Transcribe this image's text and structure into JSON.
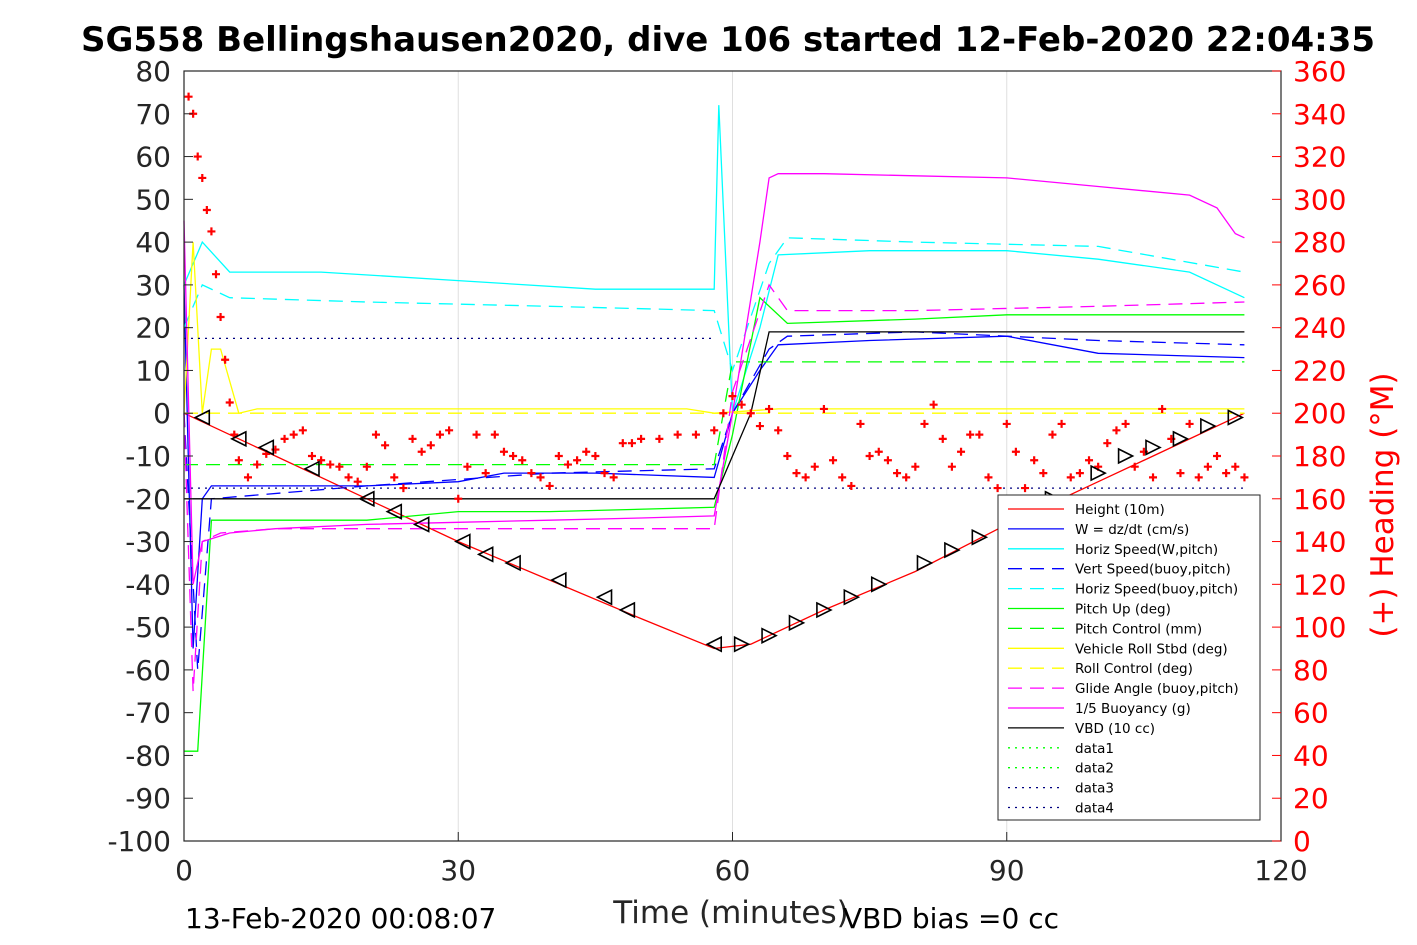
{
  "chart_data": {
    "type": "line",
    "title": "SG558 Bellingshausen2020, dive 106 started 12-Feb-2020 22:04:35",
    "xlabel": "Time (minutes)",
    "ylabel": "",
    "y2label": "(+) Heading (°M)",
    "xlim": [
      0,
      120
    ],
    "ylim": [
      -100,
      80
    ],
    "y2lim": [
      0,
      360
    ],
    "xticks": [
      0,
      30,
      60,
      90,
      120
    ],
    "yticks": [
      -100,
      -90,
      -80,
      -70,
      -60,
      -50,
      -40,
      -30,
      -20,
      -10,
      0,
      10,
      20,
      30,
      40,
      50,
      60,
      70,
      80
    ],
    "y2ticks": [
      0,
      20,
      40,
      60,
      80,
      100,
      120,
      140,
      160,
      180,
      200,
      220,
      240,
      260,
      280,
      300,
      320,
      340,
      360
    ],
    "grid": true,
    "legend_position": "bottom-right",
    "colors": {
      "red": "#ff0000",
      "blue": "#0000ff",
      "cyan": "#00ffff",
      "green": "#00ff00",
      "yellow": "#ffff00",
      "magenta": "#ff00ff",
      "black": "#000000",
      "navy": "#000080"
    },
    "series": [
      {
        "name": "Height (10m)",
        "color": "#ff0000",
        "dash": "solid",
        "x": [
          0,
          2,
          10,
          20,
          30,
          40,
          50,
          58,
          62,
          70,
          80,
          90,
          100,
          110,
          116
        ],
        "y": [
          0,
          -2,
          -10,
          -20,
          -30,
          -39,
          -48,
          -55,
          -54,
          -46,
          -37,
          -26,
          -16,
          -6,
          0
        ]
      },
      {
        "name": "W = dz/dt (cm/s)",
        "color": "#0000ff",
        "dash": "solid",
        "x": [
          0,
          1,
          2,
          3,
          10,
          20,
          30,
          35,
          45,
          58,
          60,
          63,
          65,
          75,
          90,
          100,
          116
        ],
        "y": [
          30,
          -55,
          -20,
          -17,
          -17,
          -17,
          -16,
          -14,
          -14,
          -15,
          0,
          10,
          16,
          17,
          18,
          14,
          13
        ]
      },
      {
        "name": "Horiz Speed(W,pitch)",
        "color": "#00ffff",
        "dash": "solid",
        "x": [
          0,
          2,
          5,
          15,
          30,
          45,
          58,
          58.5,
          60,
          63,
          65,
          75,
          90,
          100,
          110,
          116
        ],
        "y": [
          30,
          40,
          33,
          33,
          31,
          29,
          29,
          72,
          0,
          20,
          37,
          38,
          38,
          36,
          33,
          27
        ]
      },
      {
        "name": "Vert Speed(buoy,pitch)",
        "color": "#0000ff",
        "dash": "dashed",
        "x": [
          0,
          1.5,
          3,
          20,
          40,
          58,
          60,
          64,
          66,
          80,
          100,
          116
        ],
        "y": [
          0,
          -60,
          -20,
          -17,
          -14,
          -13,
          0,
          15,
          18,
          19,
          17,
          16
        ]
      },
      {
        "name": "Horiz Speed(buoy,pitch)",
        "color": "#00ffff",
        "dash": "dashed",
        "x": [
          0,
          2,
          5,
          20,
          40,
          58,
          60,
          64,
          66,
          80,
          100,
          116
        ],
        "y": [
          20,
          30,
          27,
          26,
          25,
          24,
          10,
          35,
          41,
          40,
          39,
          33
        ]
      },
      {
        "name": "Pitch Up (deg)",
        "color": "#00ff00",
        "dash": "solid",
        "x": [
          0,
          1.5,
          3,
          10,
          20,
          30,
          40,
          58,
          60,
          63,
          66,
          80,
          90,
          100,
          116
        ],
        "y": [
          -79,
          -79,
          -25,
          -25,
          -25,
          -23,
          -23,
          -22,
          -5,
          27,
          21,
          22,
          23,
          23,
          23
        ]
      },
      {
        "name": "Pitch Control (mm)",
        "color": "#00ff00",
        "dash": "dashed",
        "x": [
          0,
          2,
          20,
          40,
          58,
          60,
          64,
          70,
          90,
          116
        ],
        "y": [
          -12,
          -12,
          -12,
          -12,
          -12,
          12,
          12,
          12,
          12,
          12
        ]
      },
      {
        "name": "Vehicle Roll Stbd (deg)",
        "color": "#ffff00",
        "dash": "solid",
        "x": [
          0,
          1,
          2,
          3,
          4,
          6,
          8,
          15,
          25,
          35,
          45,
          55,
          58,
          65,
          75,
          85,
          95,
          105,
          116
        ],
        "y": [
          0,
          40,
          0,
          15,
          15,
          0,
          1,
          1,
          1,
          1,
          1,
          1,
          0,
          1,
          1,
          1,
          1,
          1,
          1
        ]
      },
      {
        "name": "Roll Control (deg)",
        "color": "#ffff00",
        "dash": "dashed",
        "x": [
          0,
          10,
          20,
          30,
          40,
          50,
          58,
          60,
          70,
          80,
          90,
          100,
          116
        ],
        "y": [
          0,
          0,
          0,
          0,
          0,
          0,
          0,
          0,
          0,
          0,
          0,
          0,
          0
        ]
      },
      {
        "name": "Glide Angle (buoy,pitch)",
        "color": "#ff00ff",
        "dash": "dashed",
        "x": [
          0,
          1,
          2,
          4,
          10,
          20,
          30,
          40,
          58,
          60,
          64,
          66,
          80,
          100,
          116
        ],
        "y": [
          0,
          -65,
          -30,
          -28,
          -27,
          -27,
          -27,
          -27,
          -27,
          5,
          30,
          24,
          24,
          25,
          26
        ]
      },
      {
        "name": "1/5 Buoyancy (g)",
        "color": "#ff00ff",
        "dash": "solid",
        "x": [
          0,
          1,
          2,
          5,
          10,
          20,
          30,
          40,
          50,
          58,
          60,
          63,
          64,
          65,
          70,
          80,
          90,
          100,
          110,
          113,
          115,
          116
        ],
        "y": [
          45,
          -40,
          -30,
          -28,
          -27,
          -26,
          -25.5,
          -25,
          -24.5,
          -24,
          0,
          40,
          55,
          56,
          56,
          55.5,
          55,
          53,
          51,
          48,
          42,
          41
        ]
      },
      {
        "name": "VBD (10 cc)",
        "color": "#000000",
        "dash": "solid",
        "x": [
          0,
          2,
          10,
          20,
          30,
          40,
          50,
          58,
          62,
          64,
          70,
          80,
          90,
          100,
          116
        ],
        "y": [
          -20,
          -20,
          -20,
          -20,
          -20,
          -20,
          -20,
          -20,
          0,
          19,
          19,
          19,
          19,
          19,
          19
        ]
      },
      {
        "name": "data1",
        "color": "#00ff00",
        "dash": "dotted",
        "x": [],
        "y": []
      },
      {
        "name": "data2",
        "color": "#00ff00",
        "dash": "dotted",
        "x": [],
        "y": []
      },
      {
        "name": "data3",
        "color": "#000080",
        "dash": "dotted",
        "x": [
          0,
          58
        ],
        "y": [
          17.5,
          17.5
        ]
      },
      {
        "name": "data4",
        "color": "#000080",
        "dash": "dotted",
        "x": [
          0,
          116
        ],
        "y": [
          -17.5,
          -17.5
        ]
      }
    ],
    "heading_series": {
      "name": "Heading",
      "axis": "right",
      "marker": "+",
      "color": "#ff0000",
      "x": [
        0.5,
        1,
        1.5,
        2,
        2.5,
        3,
        3.5,
        4,
        4.5,
        5,
        5.5,
        6,
        7,
        8,
        9,
        10,
        11,
        12,
        13,
        14,
        15,
        16,
        17,
        18,
        19,
        20,
        21,
        22,
        23,
        24,
        25,
        26,
        27,
        28,
        29,
        30,
        31,
        32,
        33,
        34,
        35,
        36,
        37,
        38,
        39,
        40,
        41,
        42,
        43,
        44,
        45,
        46,
        47,
        48,
        49,
        50,
        52,
        54,
        56,
        58,
        59,
        60,
        61,
        62,
        63,
        64,
        65,
        66,
        67,
        68,
        69,
        70,
        71,
        72,
        73,
        74,
        75,
        76,
        77,
        78,
        79,
        80,
        81,
        82,
        83,
        84,
        85,
        86,
        87,
        88,
        89,
        90,
        91,
        92,
        93,
        94,
        95,
        96,
        97,
        98,
        99,
        100,
        101,
        102,
        103,
        104,
        105,
        106,
        107,
        108,
        109,
        110,
        111,
        112,
        113,
        114,
        115,
        116
      ],
      "y": [
        348,
        340,
        320,
        310,
        295,
        285,
        265,
        245,
        225,
        205,
        190,
        178,
        170,
        176,
        181,
        183,
        188,
        190,
        192,
        180,
        178,
        176,
        175,
        170,
        168,
        175,
        190,
        185,
        170,
        165,
        188,
        182,
        185,
        190,
        192,
        160,
        175,
        190,
        172,
        190,
        182,
        180,
        178,
        172,
        170,
        166,
        180,
        176,
        178,
        182,
        180,
        172,
        170,
        186,
        186,
        188,
        188,
        190,
        190,
        192,
        200,
        208,
        204,
        200,
        194,
        202,
        192,
        180,
        172,
        170,
        175,
        202,
        178,
        170,
        166,
        195,
        180,
        182,
        178,
        172,
        170,
        175,
        195,
        204,
        188,
        175,
        182,
        190,
        190,
        170,
        165,
        195,
        182,
        165,
        178,
        172,
        190,
        195,
        170,
        172,
        178,
        175,
        186,
        192,
        195,
        175,
        182,
        170,
        202,
        188,
        172,
        195,
        170,
        175,
        180,
        172,
        175,
        170
      ]
    },
    "vbd_markers": {
      "name": "VBD markers",
      "color": "#000000",
      "x": [
        2,
        6,
        9,
        14,
        20,
        23,
        26,
        30.5,
        33,
        36,
        41,
        46,
        48.5,
        58,
        61,
        64,
        67,
        70,
        73,
        76,
        81,
        84,
        87,
        90,
        95,
        100,
        103,
        106,
        109,
        112,
        115
      ],
      "y": [
        -1,
        -6,
        -8,
        -13,
        -20,
        -23,
        -26,
        -30,
        -33,
        -35,
        -39,
        -43,
        -46,
        -54,
        -54,
        -52,
        -49,
        -46,
        -43,
        -40,
        -35,
        -32,
        -29,
        -25,
        -20,
        -14,
        -10,
        -8,
        -6,
        -3,
        -1
      ]
    }
  },
  "footer": {
    "left_text": "13-Feb-2020 00:08:07",
    "right_text": "VBD bias =0 cc"
  }
}
